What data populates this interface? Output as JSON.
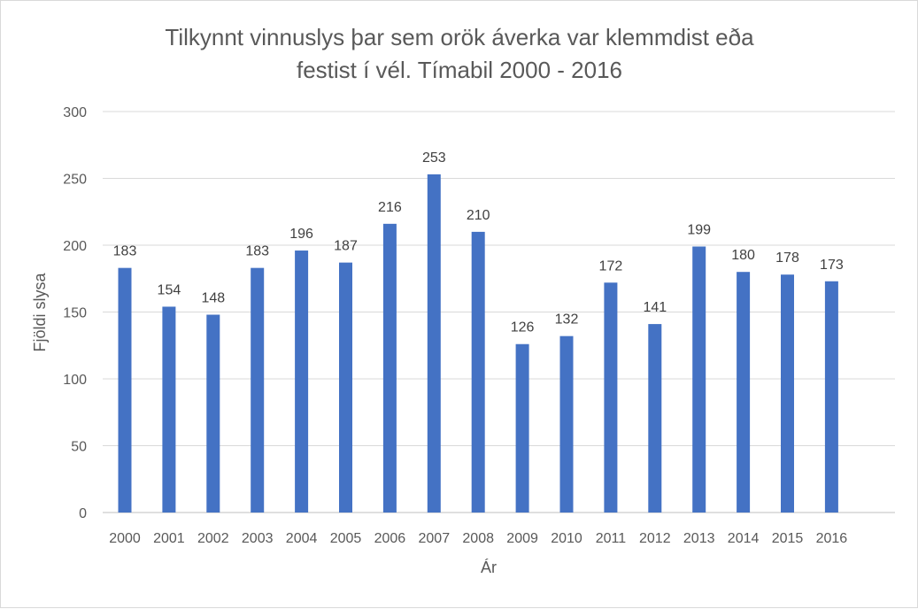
{
  "chart_data": {
    "type": "bar",
    "title_lines": [
      "Tilkynnt vinnuslys þar sem orök áverka var klemmdist eða",
      "festist í vél. Tímabil 2000 - 2016"
    ],
    "xlabel": "Ár",
    "ylabel": "Fjöldi slysa",
    "ylim": [
      0,
      300
    ],
    "yticks": [
      0,
      50,
      100,
      150,
      200,
      250,
      300
    ],
    "grid": true,
    "legend": "none",
    "bar_color": "#4472c4",
    "categories": [
      "2000",
      "2001",
      "2002",
      "2003",
      "2004",
      "2005",
      "2006",
      "2007",
      "2008",
      "2009",
      "2010",
      "2011",
      "2012",
      "2013",
      "2014",
      "2015",
      "2016"
    ],
    "values": [
      183,
      154,
      148,
      183,
      196,
      187,
      216,
      253,
      210,
      126,
      132,
      172,
      141,
      199,
      180,
      178,
      173
    ]
  }
}
